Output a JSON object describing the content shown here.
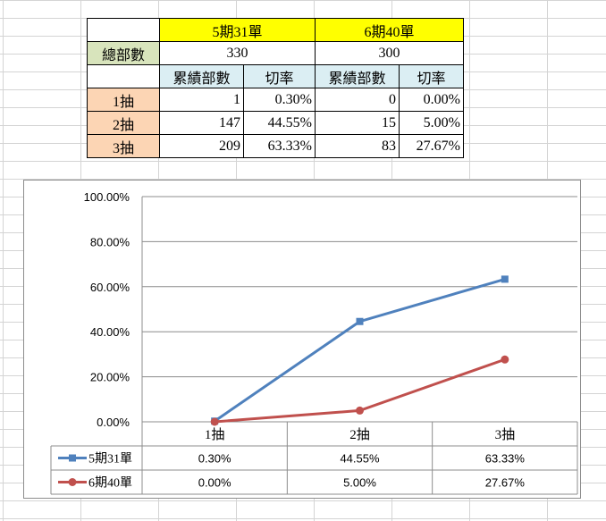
{
  "table": {
    "header": [
      "5期31單",
      "6期40單"
    ],
    "total_label": "總部數",
    "totals": [
      "330",
      "300"
    ],
    "col_labels": [
      "累績部數",
      "切率",
      "累績部數",
      "切率"
    ],
    "rows": [
      {
        "label": "1抽",
        "cells": [
          "1",
          "0.30%",
          "0",
          "0.00%"
        ]
      },
      {
        "label": "2抽",
        "cells": [
          "147",
          "44.55%",
          "15",
          "5.00%"
        ]
      },
      {
        "label": "3抽",
        "cells": [
          "209",
          "63.33%",
          "83",
          "27.67%"
        ]
      }
    ]
  },
  "chart_data": {
    "type": "line",
    "categories": [
      "1抽",
      "2抽",
      "3抽"
    ],
    "series": [
      {
        "name": "5期31單",
        "values": [
          0.3,
          44.55,
          63.33
        ],
        "labels": [
          "0.30%",
          "44.55%",
          "63.33%"
        ],
        "color": "#4f81bd",
        "marker": "square"
      },
      {
        "name": "6期40單",
        "values": [
          0.0,
          5.0,
          27.67
        ],
        "labels": [
          "0.00%",
          "5.00%",
          "27.67%"
        ],
        "color": "#c0504d",
        "marker": "circle"
      }
    ],
    "yticks": [
      "0.00%",
      "20.00%",
      "40.00%",
      "60.00%",
      "80.00%",
      "100.00%"
    ],
    "ylim": [
      0,
      100
    ],
    "grid": true,
    "legend": "data-table"
  }
}
